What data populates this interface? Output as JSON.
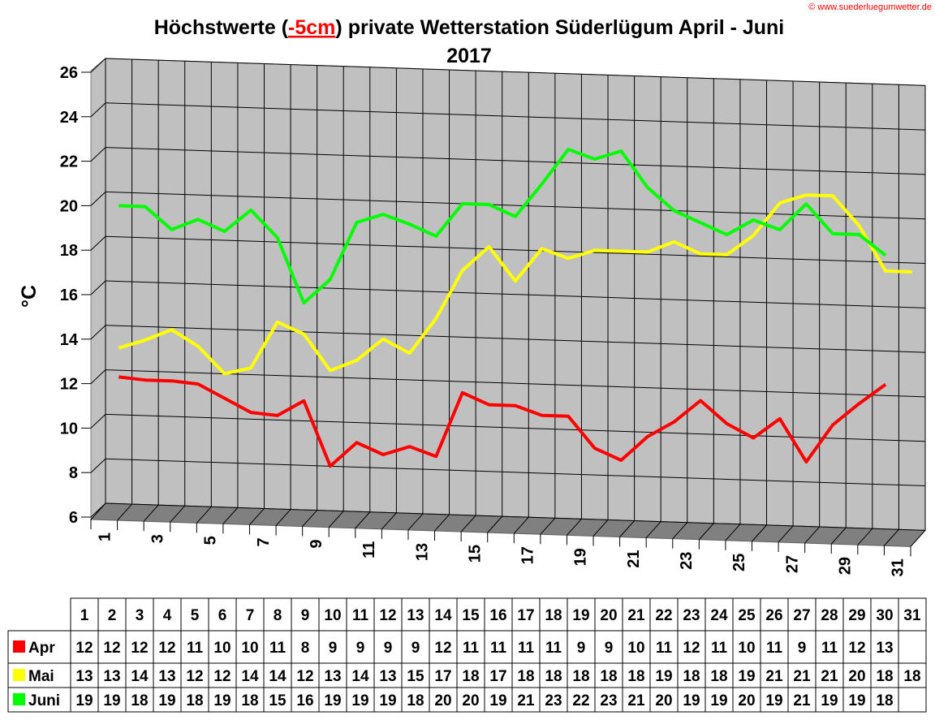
{
  "copyright": "© www.suederluegumwetter.de",
  "chart_data": {
    "type": "line",
    "title_prefix": "Höchstwerte (",
    "title_highlight": "-5cm",
    "title_suffix": ") private Wetterstation Süderlügum April - Juni",
    "title_line2": "2017",
    "ylabel": "°C",
    "xlabel": "",
    "ylim": [
      6,
      26
    ],
    "yticks": [
      6,
      8,
      10,
      12,
      14,
      16,
      18,
      20,
      22,
      24,
      26
    ],
    "xticks": [
      1,
      3,
      5,
      7,
      9,
      11,
      13,
      15,
      17,
      19,
      21,
      23,
      25,
      27,
      29,
      31
    ],
    "x": [
      1,
      2,
      3,
      4,
      5,
      6,
      7,
      8,
      9,
      10,
      11,
      12,
      13,
      14,
      15,
      16,
      17,
      18,
      19,
      20,
      21,
      22,
      23,
      24,
      25,
      26,
      27,
      28,
      29,
      30,
      31
    ],
    "grid": true,
    "style": "3d",
    "colors": {
      "wall": "#c0c0c0",
      "floor": "#808080",
      "highlight": "#ff0000"
    },
    "series": [
      {
        "name": "Apr",
        "color": "#ff0000",
        "values": [
          11.7,
          11.6,
          11.6,
          11.5,
          10.9,
          10.3,
          10.2,
          10.9,
          8.0,
          9.1,
          8.6,
          9.0,
          8.6,
          11.5,
          11.0,
          11.0,
          10.6,
          10.6,
          9.2,
          8.7,
          9.8,
          10.5,
          11.5,
          10.5,
          9.9,
          10.8,
          8.9,
          10.6,
          11.6,
          12.5,
          null
        ]
      },
      {
        "name": "Mai",
        "color": "#ffff00",
        "values": [
          13.0,
          13.4,
          13.9,
          13.2,
          12.0,
          12.3,
          14.4,
          13.9,
          12.3,
          12.8,
          13.8,
          13.2,
          14.8,
          17.0,
          18.1,
          16.6,
          18.1,
          17.7,
          18.1,
          18.1,
          18.1,
          18.6,
          18.1,
          18.1,
          19.0,
          20.5,
          20.9,
          20.9,
          19.6,
          17.6,
          17.6
        ]
      },
      {
        "name": "Juni",
        "color": "#00ff00",
        "values": [
          19.4,
          19.4,
          18.4,
          18.9,
          18.4,
          19.4,
          18.2,
          15.3,
          16.4,
          19.0,
          19.4,
          19.0,
          18.5,
          20.0,
          20.0,
          19.5,
          21.0,
          22.6,
          22.2,
          22.6,
          21.0,
          20.0,
          19.5,
          19.0,
          19.7,
          19.3,
          20.5,
          19.2,
          19.2,
          18.3,
          null
        ]
      }
    ],
    "table": {
      "header": [
        "1",
        "2",
        "3",
        "4",
        "5",
        "6",
        "7",
        "8",
        "9",
        "10",
        "11",
        "12",
        "13",
        "14",
        "15",
        "16",
        "17",
        "18",
        "19",
        "20",
        "21",
        "22",
        "23",
        "24",
        "25",
        "26",
        "27",
        "28",
        "29",
        "30",
        "31"
      ],
      "rows": [
        {
          "label": "Apr",
          "color": "#ff0000",
          "cells": [
            "12",
            "12",
            "12",
            "12",
            "11",
            "10",
            "10",
            "11",
            "8",
            "9",
            "9",
            "9",
            "9",
            "12",
            "11",
            "11",
            "11",
            "11",
            "9",
            "9",
            "10",
            "11",
            "12",
            "11",
            "10",
            "11",
            "9",
            "11",
            "12",
            "13",
            ""
          ]
        },
        {
          "label": "Mai",
          "color": "#ffff00",
          "cells": [
            "13",
            "13",
            "14",
            "13",
            "12",
            "12",
            "14",
            "14",
            "12",
            "13",
            "14",
            "13",
            "15",
            "17",
            "18",
            "17",
            "18",
            "18",
            "18",
            "18",
            "18",
            "19",
            "18",
            "18",
            "19",
            "21",
            "21",
            "21",
            "20",
            "18",
            "18"
          ]
        },
        {
          "label": "Juni",
          "color": "#00ff00",
          "cells": [
            "19",
            "19",
            "18",
            "19",
            "18",
            "19",
            "18",
            "15",
            "16",
            "19",
            "19",
            "19",
            "18",
            "20",
            "20",
            "19",
            "21",
            "23",
            "22",
            "23",
            "21",
            "20",
            "19",
            "19",
            "20",
            "19",
            "21",
            "19",
            "19",
            "18",
            ""
          ]
        }
      ]
    }
  }
}
